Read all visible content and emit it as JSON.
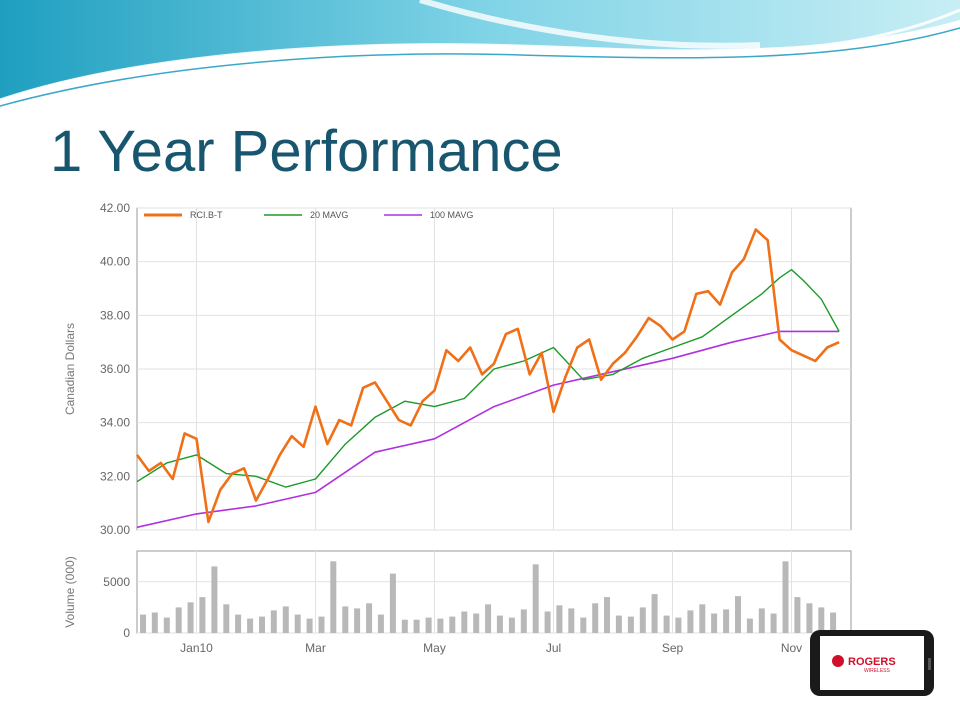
{
  "slide": {
    "title": "1 Year Performance",
    "logo_text": "ROGERS",
    "logo_subtext": "WIRELESS"
  },
  "colors": {
    "title": "#17566e",
    "price": "#f07018",
    "ma20": "#1c9a2a",
    "ma100": "#b030e0",
    "volume": "#b8b8b8"
  },
  "chart_data": [
    {
      "type": "line",
      "ylabel": "Canadian Dollars",
      "ylim": [
        30,
        42
      ],
      "yticks": [
        "30.00",
        "32.00",
        "34.00",
        "36.00",
        "38.00",
        "40.00",
        "42.00"
      ],
      "grid": true,
      "legend_position": "top-left",
      "x_months": [
        "Jan10",
        "Mar",
        "May",
        "Jul",
        "Sep",
        "Nov"
      ],
      "x_month_index": [
        1,
        3,
        5,
        7,
        9,
        11
      ],
      "x_range_months": [
        0,
        12
      ],
      "series": [
        {
          "name": "RCI.B-T",
          "x": [
            0,
            0.2,
            0.4,
            0.6,
            0.8,
            1.0,
            1.2,
            1.4,
            1.6,
            1.8,
            2.0,
            2.2,
            2.4,
            2.6,
            2.8,
            3.0,
            3.2,
            3.4,
            3.6,
            3.8,
            4.0,
            4.2,
            4.4,
            4.6,
            4.8,
            5.0,
            5.2,
            5.4,
            5.6,
            5.8,
            6.0,
            6.2,
            6.4,
            6.6,
            6.8,
            7.0,
            7.2,
            7.4,
            7.6,
            7.8,
            8.0,
            8.2,
            8.4,
            8.6,
            8.8,
            9.0,
            9.2,
            9.4,
            9.6,
            9.8,
            10.0,
            10.2,
            10.4,
            10.6,
            10.8,
            11.0,
            11.2,
            11.4,
            11.6,
            11.8
          ],
          "values": [
            32.8,
            32.2,
            32.5,
            31.9,
            33.6,
            33.4,
            30.3,
            31.5,
            32.1,
            32.3,
            31.1,
            31.9,
            32.8,
            33.5,
            33.1,
            34.6,
            33.2,
            34.1,
            33.9,
            35.3,
            35.5,
            34.8,
            34.1,
            33.9,
            34.8,
            35.2,
            36.7,
            36.3,
            36.8,
            35.8,
            36.2,
            37.3,
            37.5,
            35.8,
            36.6,
            34.4,
            35.7,
            36.8,
            37.1,
            35.6,
            36.2,
            36.6,
            37.2,
            37.9,
            37.6,
            37.1,
            37.4,
            38.8,
            38.9,
            38.4,
            39.6,
            40.1,
            41.2,
            40.8,
            37.1,
            36.7,
            36.5,
            36.3,
            36.8,
            37.0
          ]
        },
        {
          "name": "20 MAVG",
          "x": [
            0,
            0.5,
            1.0,
            1.5,
            2.0,
            2.5,
            3.0,
            3.5,
            4.0,
            4.5,
            5.0,
            5.5,
            6.0,
            6.5,
            7.0,
            7.5,
            8.0,
            8.5,
            9.0,
            9.5,
            10.0,
            10.5,
            10.8,
            11.0,
            11.2,
            11.5,
            11.8
          ],
          "values": [
            31.8,
            32.5,
            32.8,
            32.1,
            32.0,
            31.6,
            31.9,
            33.2,
            34.2,
            34.8,
            34.6,
            34.9,
            36.0,
            36.3,
            36.8,
            35.6,
            35.8,
            36.4,
            36.8,
            37.2,
            38.0,
            38.8,
            39.4,
            39.7,
            39.3,
            38.6,
            37.4
          ]
        },
        {
          "name": "100 MAVG",
          "x": [
            0,
            1.0,
            2.0,
            3.0,
            4.0,
            5.0,
            6.0,
            7.0,
            8.0,
            9.0,
            10.0,
            10.8,
            11.4,
            11.8
          ],
          "values": [
            30.1,
            30.6,
            30.9,
            31.4,
            32.9,
            33.4,
            34.6,
            35.4,
            35.9,
            36.4,
            37.0,
            37.4,
            37.4,
            37.4
          ]
        }
      ]
    },
    {
      "type": "bar",
      "ylabel": "Volume (000)",
      "ylim": [
        0,
        8000
      ],
      "yticks": [
        "0",
        "5000"
      ],
      "x_range_months": [
        0,
        12
      ],
      "x": [
        0.1,
        0.3,
        0.5,
        0.7,
        0.9,
        1.1,
        1.3,
        1.5,
        1.7,
        1.9,
        2.1,
        2.3,
        2.5,
        2.7,
        2.9,
        3.1,
        3.3,
        3.5,
        3.7,
        3.9,
        4.1,
        4.3,
        4.5,
        4.7,
        4.9,
        5.1,
        5.3,
        5.5,
        5.7,
        5.9,
        6.1,
        6.3,
        6.5,
        6.7,
        6.9,
        7.1,
        7.3,
        7.5,
        7.7,
        7.9,
        8.1,
        8.3,
        8.5,
        8.7,
        8.9,
        9.1,
        9.3,
        9.5,
        9.7,
        9.9,
        10.1,
        10.3,
        10.5,
        10.7,
        10.9,
        11.1,
        11.3,
        11.5,
        11.7
      ],
      "values": [
        1800,
        2000,
        1500,
        2500,
        3000,
        3500,
        6500,
        2800,
        1800,
        1400,
        1600,
        2200,
        2600,
        1800,
        1400,
        1600,
        7000,
        2600,
        2400,
        2900,
        1800,
        5800,
        1300,
        1300,
        1500,
        1400,
        1600,
        2100,
        1900,
        2800,
        1700,
        1500,
        2300,
        6700,
        2100,
        2700,
        2400,
        1500,
        2900,
        3500,
        1700,
        1600,
        2500,
        3800,
        1700,
        1500,
        2200,
        2800,
        1900,
        2300,
        3600,
        1400,
        2400,
        1900,
        7000,
        3500,
        2900,
        2500,
        2000
      ]
    }
  ]
}
